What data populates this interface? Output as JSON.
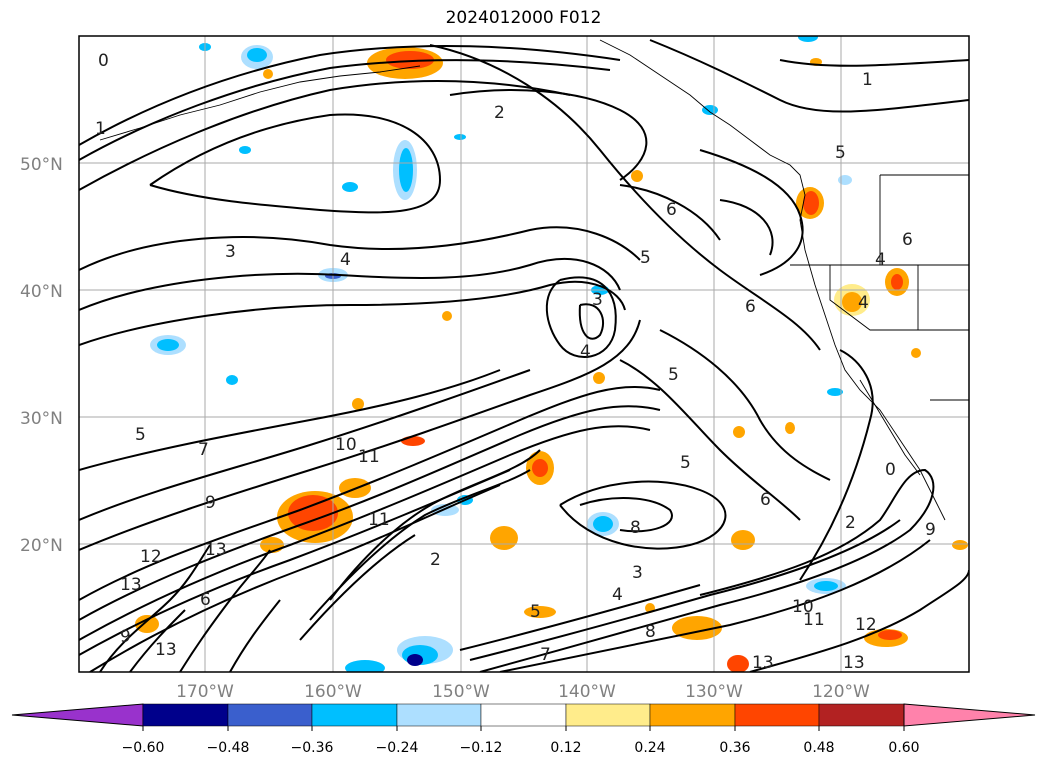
{
  "title": "2024012000 F012",
  "lat_labels": [
    "50°N",
    "40°N",
    "30°N",
    "20°N"
  ],
  "lon_labels": [
    "170°W",
    "160°W",
    "150°W",
    "140°W",
    "130°W",
    "120°W"
  ],
  "colorbar": {
    "ticks": [
      "−0.60",
      "−0.48",
      "−0.36",
      "−0.24",
      "−0.12",
      "0.12",
      "0.24",
      "0.36",
      "0.48",
      "0.60"
    ],
    "colors": [
      "#9932CC",
      "#00008B",
      "#3A5FCD",
      "#00BFFF",
      "#ADDFFF",
      "#FFFFFF",
      "#FFEC8B",
      "#FFA500",
      "#FF4500",
      "#B22222",
      "#FF82AB"
    ]
  },
  "contour_labels": [
    "0",
    "1",
    "2",
    "3",
    "4",
    "5",
    "6",
    "7",
    "8",
    "9",
    "10",
    "11",
    "12",
    "13"
  ]
}
